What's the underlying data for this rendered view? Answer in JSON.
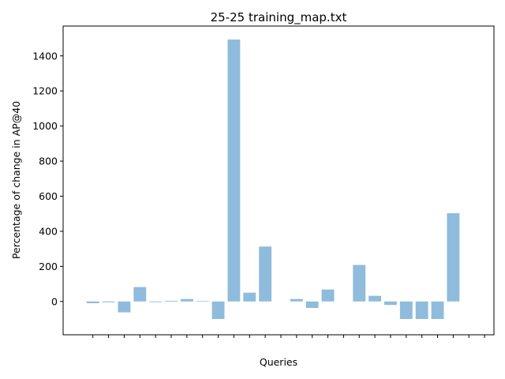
{
  "chart_data": {
    "type": "bar",
    "title": "25-25 training_map.txt",
    "xlabel": "Queries",
    "ylabel": "Percentage of change in AP@40",
    "ylim": [
      -190,
      1570
    ],
    "yticks": [
      0,
      200,
      400,
      600,
      800,
      1000,
      1200,
      1400
    ],
    "xlim": [
      -1.9,
      25.6
    ],
    "categories": [
      "",
      "",
      "",
      "",
      "",
      "",
      "",
      "",
      "",
      "",
      "",
      "",
      "",
      "",
      "",
      "",
      "",
      "",
      "",
      "",
      "",
      "",
      "",
      "",
      "",
      ""
    ],
    "values": [
      -10,
      -5,
      -62,
      82,
      -4,
      4,
      14,
      3,
      -100,
      1493,
      50,
      313,
      0,
      14,
      -37,
      68,
      0,
      208,
      32,
      -20,
      -100,
      -100,
      -100,
      503,
      0,
      0
    ],
    "bar_color": "#8fbcdc",
    "grid": false,
    "legend": "none"
  }
}
